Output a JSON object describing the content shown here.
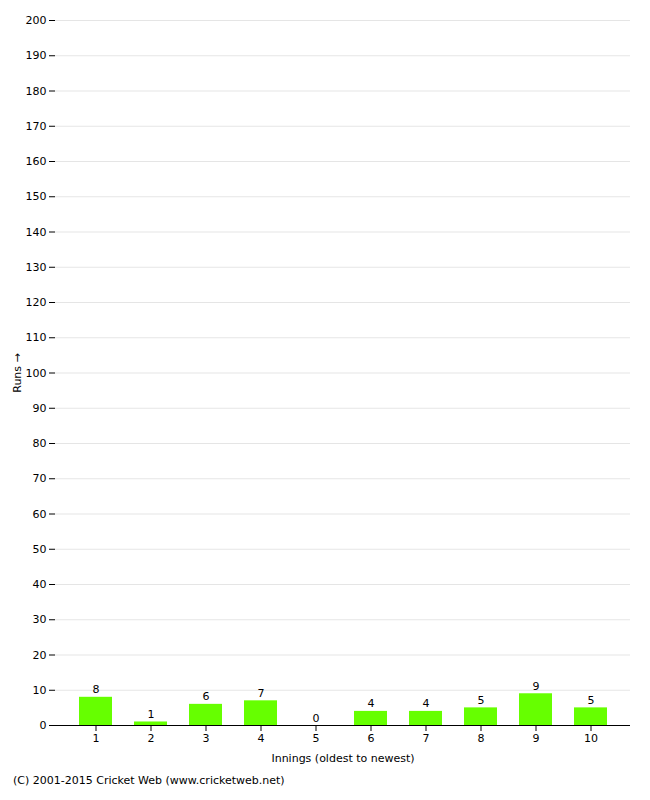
{
  "chart_data": {
    "type": "bar",
    "xlabel": "Innings (oldest to newest)",
    "ylabel": "Runs",
    "categories": [
      "1",
      "2",
      "3",
      "4",
      "5",
      "6",
      "7",
      "8",
      "9",
      "10"
    ],
    "values": [
      8,
      1,
      6,
      7,
      0,
      4,
      4,
      5,
      9,
      5
    ],
    "color": "#66ff00",
    "ylim": [
      0,
      200
    ],
    "yticks": [
      0,
      10,
      20,
      30,
      40,
      50,
      60,
      70,
      80,
      90,
      100,
      110,
      120,
      130,
      140,
      150,
      160,
      170,
      180,
      190,
      200
    ],
    "grid": true,
    "data_labels": true,
    "annotations": [
      "(C) 2001-2015 Cricket Web (www.cricketweb.net)"
    ]
  }
}
